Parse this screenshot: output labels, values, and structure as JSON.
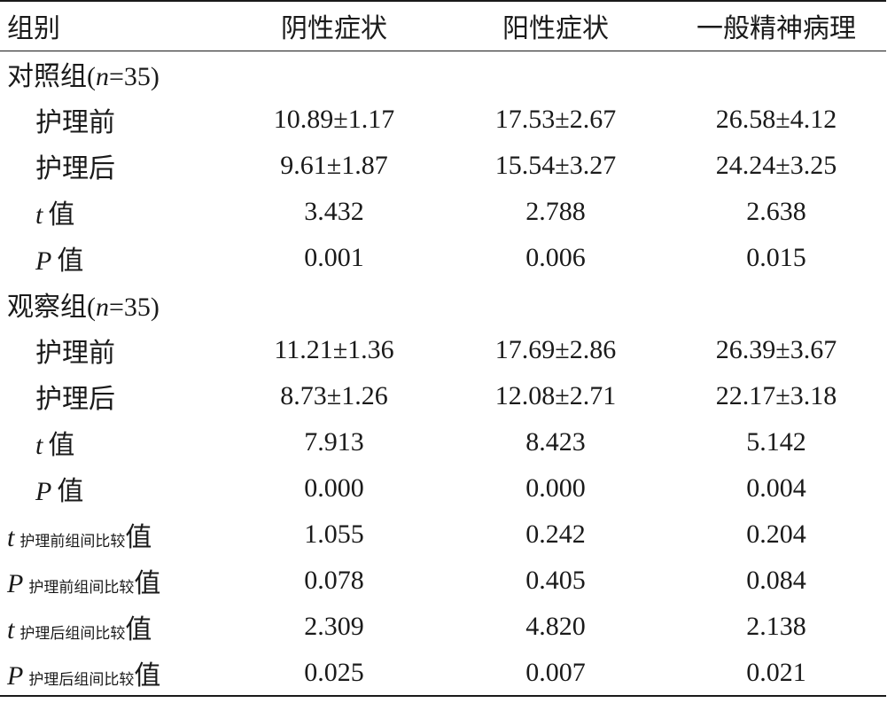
{
  "table": {
    "headers": [
      "组别",
      "阴性症状",
      "阳性症状",
      "一般精神病理"
    ],
    "group_control": {
      "name": "对照组",
      "n_prefix": "(",
      "n_var": "n",
      "n_value": "=35",
      "n_suffix": ")"
    },
    "group_observe": {
      "name": "观察组",
      "n_prefix": "(",
      "n_var": "n",
      "n_value": "=35",
      "n_suffix": ")"
    },
    "labels": {
      "before": "护理前",
      "after": "护理后",
      "t_var": "t",
      "p_var": "P",
      "value_suffix": "值",
      "between_before": "护理前组间比较",
      "between_after": "护理后组间比较"
    },
    "control": {
      "before": [
        "10.89±1.17",
        "17.53±2.67",
        "26.58±4.12"
      ],
      "after": [
        "9.61±1.87",
        "15.54±3.27",
        "24.24±3.25"
      ],
      "t": [
        "3.432",
        "2.788",
        "2.638"
      ],
      "p": [
        "0.001",
        "0.006",
        "0.015"
      ]
    },
    "observe": {
      "before": [
        "11.21±1.36",
        "17.69±2.86",
        "26.39±3.67"
      ],
      "after": [
        "8.73±1.26",
        "12.08±2.71",
        "22.17±3.18"
      ],
      "t": [
        "7.913",
        "8.423",
        "5.142"
      ],
      "p": [
        "0.000",
        "0.000",
        "0.004"
      ]
    },
    "between": {
      "t_before": [
        "1.055",
        "0.242",
        "0.204"
      ],
      "p_before": [
        "0.078",
        "0.405",
        "0.084"
      ],
      "t_after": [
        "2.309",
        "4.820",
        "2.138"
      ],
      "p_after": [
        "0.025",
        "0.007",
        "0.021"
      ]
    }
  }
}
